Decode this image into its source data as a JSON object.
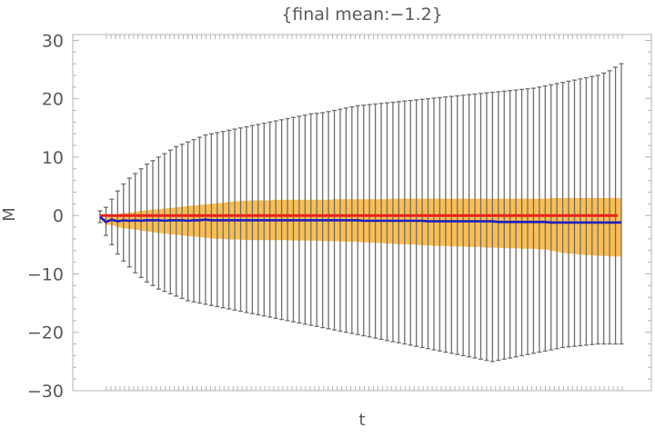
{
  "chart_data": {
    "type": "line",
    "title": "{final mean:−1.2}",
    "xlabel": "t",
    "ylabel": "M",
    "xlim": [
      0,
      100
    ],
    "ylim": [
      -30,
      31
    ],
    "yticks": [
      30,
      20,
      10,
      0,
      -10,
      -20,
      -30
    ],
    "ytick_labels": [
      "30",
      "20",
      "10",
      "0",
      "−10",
      "−20",
      "−30"
    ],
    "x_minor_tick_count": 115,
    "grid": false,
    "colors": {
      "frame": "#b4b4b4",
      "tick_label": "#595959",
      "error_bar": "#6e6e6e",
      "band": "#fbbe51",
      "reference_line": "#e8221c",
      "mean_line": "#1e1ebe"
    },
    "n_points": 90,
    "reference_value": 0,
    "series": [
      {
        "values": [
          -0.2,
          -1.1,
          -0.7,
          -1.0,
          -0.8,
          -0.9,
          -0.8,
          -0.9,
          -0.8,
          -0.8,
          -0.8,
          -0.9,
          -0.8,
          -0.8,
          -0.8,
          -0.9,
          -0.8,
          -0.8,
          -0.7,
          -0.8,
          -0.8,
          -0.8,
          -0.8,
          -0.8,
          -0.8,
          -0.8,
          -0.8,
          -0.8,
          -0.8,
          -0.8,
          -0.8,
          -0.8,
          -0.8,
          -0.8,
          -0.8,
          -0.8,
          -0.8,
          -0.8,
          -0.8,
          -0.8,
          -0.8,
          -0.8,
          -0.8,
          -0.8,
          -0.8,
          -0.9,
          -0.9,
          -0.9,
          -0.9,
          -0.9,
          -0.9,
          -0.9,
          -0.9,
          -0.9,
          -0.9,
          -0.9,
          -1.0,
          -1.0,
          -1.0,
          -1.0,
          -1.0,
          -1.0,
          -1.0,
          -1.0,
          -1.0,
          -1.0,
          -1.0,
          -1.0,
          -1.1,
          -1.1,
          -1.1,
          -1.1,
          -1.1,
          -1.1,
          -1.1,
          -1.1,
          -1.1,
          -1.2,
          -1.2,
          -1.2,
          -1.2,
          -1.2,
          -1.2,
          -1.2,
          -1.2,
          -1.2,
          -1.2,
          -1.2,
          -1.2,
          -1.2
        ],
        "band_upper": [
          -0.5,
          -0.4,
          0.2,
          0.2,
          0.4,
          0.5,
          0.6,
          0.8,
          0.9,
          1.0,
          1.1,
          1.2,
          1.3,
          1.4,
          1.5,
          1.6,
          1.7,
          1.8,
          1.9,
          2.0,
          2.1,
          2.2,
          2.3,
          2.4,
          2.5,
          2.5,
          2.6,
          2.6,
          2.6,
          2.6,
          2.7,
          2.7,
          2.7,
          2.7,
          2.7,
          2.7,
          2.7,
          2.7,
          2.7,
          2.7,
          2.8,
          2.8,
          2.8,
          2.8,
          2.8,
          2.8,
          2.8,
          2.8,
          2.8,
          2.8,
          2.9,
          2.9,
          2.9,
          2.9,
          2.9,
          2.9,
          2.9,
          2.9,
          2.9,
          2.9,
          2.9,
          2.9,
          2.9,
          2.9,
          2.9,
          2.9,
          2.9,
          2.9,
          2.9,
          2.9,
          2.9,
          2.9,
          2.9,
          2.9,
          2.9,
          2.9,
          2.9,
          3.0,
          3.0,
          3.0,
          3.0,
          3.0,
          3.0,
          3.0,
          3.0,
          3.0,
          3.0,
          3.0,
          3.0,
          3.0
        ],
        "band_lower": [
          -0.5,
          -1.6,
          -1.6,
          -2.0,
          -2.2,
          -2.3,
          -2.4,
          -2.6,
          -2.7,
          -2.9,
          -3.0,
          -3.1,
          -3.2,
          -3.3,
          -3.4,
          -3.5,
          -3.6,
          -3.7,
          -3.8,
          -3.9,
          -4.0,
          -4.0,
          -4.1,
          -4.1,
          -4.1,
          -4.2,
          -4.2,
          -4.2,
          -4.2,
          -4.2,
          -4.2,
          -4.2,
          -4.2,
          -4.3,
          -4.3,
          -4.3,
          -4.3,
          -4.3,
          -4.4,
          -4.4,
          -4.4,
          -4.4,
          -4.5,
          -4.5,
          -4.5,
          -4.6,
          -4.6,
          -4.7,
          -4.7,
          -4.8,
          -4.8,
          -4.9,
          -4.9,
          -5.0,
          -5.0,
          -5.1,
          -5.1,
          -5.2,
          -5.2,
          -5.2,
          -5.3,
          -5.3,
          -5.3,
          -5.4,
          -5.4,
          -5.4,
          -5.5,
          -5.5,
          -5.5,
          -5.6,
          -5.6,
          -5.6,
          -5.7,
          -5.7,
          -5.7,
          -5.8,
          -5.8,
          -6.0,
          -6.2,
          -6.4,
          -6.5,
          -6.6,
          -6.7,
          -6.8,
          -6.8,
          -6.9,
          -6.9,
          -7.0,
          -7.0,
          -7.0
        ],
        "error_upper": [
          0.8,
          1.4,
          2.8,
          4.2,
          5.4,
          6.4,
          7.2,
          8.0,
          8.8,
          9.4,
          10.0,
          10.6,
          11.2,
          11.8,
          12.2,
          12.6,
          13.0,
          13.4,
          13.8,
          14.0,
          14.2,
          14.4,
          14.6,
          14.8,
          15.0,
          15.2,
          15.4,
          15.6,
          15.8,
          16.0,
          16.2,
          16.4,
          16.6,
          16.8,
          17.0,
          17.2,
          17.4,
          17.5,
          17.6,
          17.8,
          18.0,
          18.2,
          18.4,
          18.6,
          18.8,
          18.9,
          19.0,
          19.1,
          19.2,
          19.3,
          19.4,
          19.5,
          19.6,
          19.7,
          19.8,
          19.9,
          20.0,
          20.1,
          20.2,
          20.3,
          20.4,
          20.5,
          20.6,
          20.7,
          20.8,
          20.9,
          21.0,
          21.1,
          21.2,
          21.3,
          21.4,
          21.5,
          21.6,
          21.7,
          21.8,
          22.0,
          22.2,
          22.4,
          22.6,
          22.8,
          23.0,
          23.2,
          23.4,
          23.6,
          23.8,
          24.0,
          24.4,
          24.8,
          25.4,
          26.0
        ],
        "error_lower": [
          -1.2,
          -3.4,
          -5.0,
          -6.6,
          -7.8,
          -8.8,
          -9.8,
          -10.6,
          -11.4,
          -12.0,
          -12.6,
          -13.0,
          -13.4,
          -13.8,
          -14.2,
          -14.6,
          -14.8,
          -15.0,
          -15.2,
          -15.4,
          -15.6,
          -15.8,
          -16.0,
          -16.2,
          -16.4,
          -16.6,
          -16.8,
          -17.0,
          -17.2,
          -17.4,
          -17.6,
          -17.8,
          -18.0,
          -18.2,
          -18.4,
          -18.6,
          -18.8,
          -19.0,
          -19.2,
          -19.4,
          -19.6,
          -19.8,
          -20.0,
          -20.2,
          -20.4,
          -20.6,
          -20.8,
          -21.0,
          -21.2,
          -21.4,
          -21.6,
          -21.8,
          -22.0,
          -22.2,
          -22.4,
          -22.6,
          -22.8,
          -23.0,
          -23.2,
          -23.4,
          -23.6,
          -23.8,
          -24.0,
          -24.2,
          -24.4,
          -24.6,
          -24.8,
          -25.0,
          -24.8,
          -24.6,
          -24.4,
          -24.2,
          -24.0,
          -23.8,
          -23.6,
          -23.4,
          -23.2,
          -23.0,
          -22.8,
          -22.6,
          -22.5,
          -22.4,
          -22.3,
          -22.2,
          -22.1,
          -22.0,
          -22.0,
          -22.0,
          -22.0,
          -22.0
        ]
      }
    ]
  }
}
